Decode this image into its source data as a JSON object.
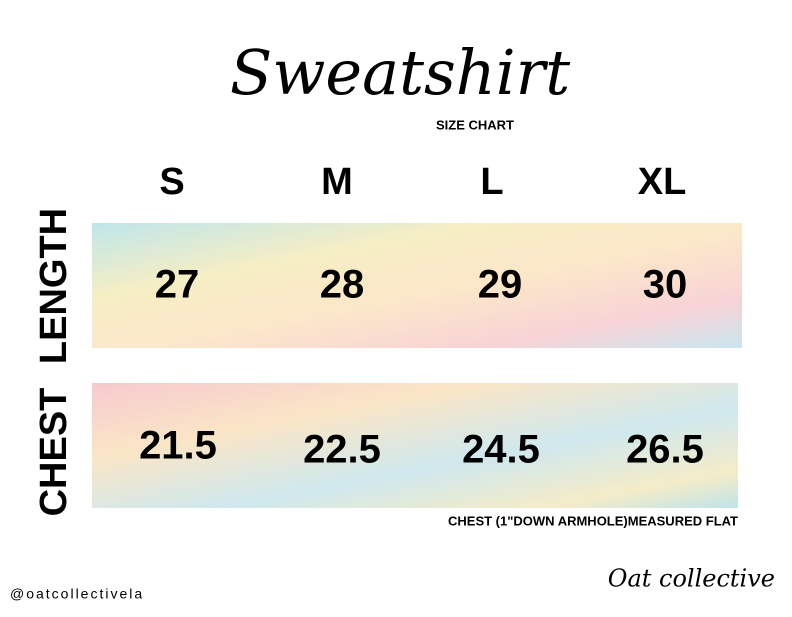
{
  "header": {
    "title": "Sweatshirt",
    "subtitle": "SIZE CHART"
  },
  "table": {
    "columns": [
      "S",
      "M",
      "L",
      "XL"
    ],
    "rows": [
      {
        "label": "LENGTH",
        "values": [
          27,
          28,
          29,
          30
        ]
      },
      {
        "label": "CHEST",
        "values": [
          21.5,
          22.5,
          24.5,
          26.5
        ]
      }
    ]
  },
  "note": "CHEST (1\"DOWN ARMHOLE)MEASURED FLAT",
  "footer": {
    "handle": "@oatcollectivela",
    "brand": "Oat collective"
  }
}
